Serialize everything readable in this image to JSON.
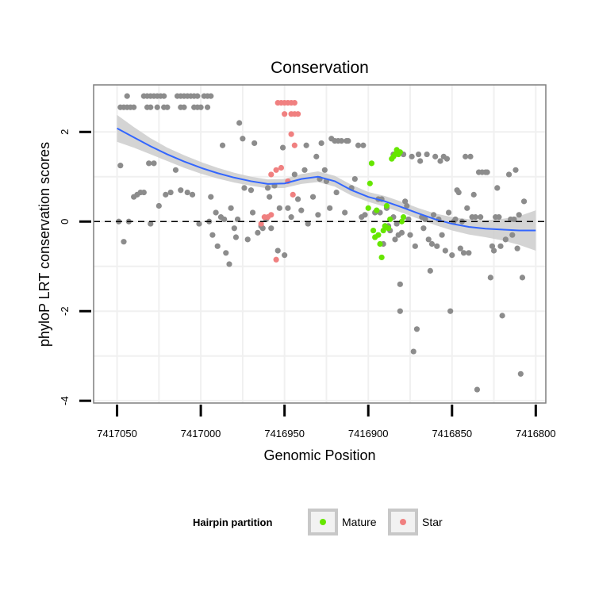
{
  "chart_data": {
    "type": "scatter",
    "title": "Conservation",
    "xlabel": "Genomic Position",
    "ylabel": "phyloP LRT conservation scores",
    "x_reversed": true,
    "xlim": [
      7417064,
      7416794
    ],
    "ylim": [
      -4.05,
      3.05
    ],
    "x_ticks": [
      7417050,
      7417000,
      7416950,
      7416900,
      7416850,
      7416800
    ],
    "x_tick_labels": [
      "7417050",
      "7417000",
      "7416950",
      "7416900",
      "7416850",
      "7416800"
    ],
    "y_ticks": [
      -4,
      -2,
      0,
      2
    ],
    "y_tick_labels": [
      "-4",
      "-2",
      "0",
      "2"
    ],
    "reference_line": {
      "y": 0,
      "style": "dashed"
    },
    "colors": {
      "background": "#ffffff",
      "panel_border": "#7f7f7f",
      "gridline": "#f0f0f0",
      "other_points": "#8c8c8c",
      "mature": "#66e600",
      "star": "#f08080",
      "smooth_line": "#3366ff",
      "ribbon": "#cccccc"
    },
    "legend": {
      "title": "Hairpin partition",
      "position": "bottom",
      "entries": [
        {
          "label": "Mature",
          "color": "#66e600"
        },
        {
          "label": "Star",
          "color": "#f08080"
        }
      ]
    },
    "series": [
      {
        "name": "Other",
        "points": [
          [
            7417048,
            2.55
          ],
          [
            7417046,
            2.55
          ],
          [
            7417044,
            2.55
          ],
          [
            7417042,
            2.55
          ],
          [
            7417040,
            2.55
          ],
          [
            7417044,
            2.8
          ],
          [
            7417034,
            2.8
          ],
          [
            7417032,
            2.8
          ],
          [
            7417030,
            2.8
          ],
          [
            7417028,
            2.8
          ],
          [
            7417026,
            2.8
          ],
          [
            7417024,
            2.8
          ],
          [
            7417022,
            2.8
          ],
          [
            7417032,
            2.55
          ],
          [
            7417030,
            2.55
          ],
          [
            7417026,
            2.55
          ],
          [
            7417022,
            2.55
          ],
          [
            7417020,
            2.55
          ],
          [
            7417014,
            2.8
          ],
          [
            7417012,
            2.8
          ],
          [
            7417010,
            2.8
          ],
          [
            7417008,
            2.8
          ],
          [
            7417006,
            2.8
          ],
          [
            7417004,
            2.8
          ],
          [
            7417002,
            2.8
          ],
          [
            7416998,
            2.8
          ],
          [
            7416996,
            2.8
          ],
          [
            7416994,
            2.8
          ],
          [
            7417012,
            2.55
          ],
          [
            7417010,
            2.55
          ],
          [
            7417004,
            2.55
          ],
          [
            7417002,
            2.55
          ],
          [
            7417000,
            2.55
          ],
          [
            7416996,
            2.55
          ],
          [
            7417048,
            1.25
          ],
          [
            7417046,
            -0.45
          ],
          [
            7417049,
            0
          ],
          [
            7417043,
            0
          ],
          [
            7417040,
            0.55
          ],
          [
            7417038,
            0.6
          ],
          [
            7417036,
            0.65
          ],
          [
            7417034,
            0.65
          ],
          [
            7417031,
            1.3
          ],
          [
            7417028,
            1.3
          ],
          [
            7417030,
            -0.05
          ],
          [
            7417025,
            0.35
          ],
          [
            7417021,
            0.6
          ],
          [
            7417018,
            0.65
          ],
          [
            7417015,
            1.15
          ],
          [
            7417012,
            0.7
          ],
          [
            7417008,
            0.65
          ],
          [
            7417005,
            0.6
          ],
          [
            7417001,
            -0.05
          ],
          [
            7416995,
            0
          ],
          [
            7416994,
            0.55
          ],
          [
            7416993,
            -0.3
          ],
          [
            7416991,
            0.2
          ],
          [
            7416990,
            -0.55
          ],
          [
            7416988,
            0.1
          ],
          [
            7416987,
            1.7
          ],
          [
            7416986,
            0.05
          ],
          [
            7416985,
            -0.7
          ],
          [
            7416983,
            -0.95
          ],
          [
            7416982,
            0.3
          ],
          [
            7416980,
            -0.15
          ],
          [
            7416979,
            -0.35
          ],
          [
            7416978,
            0.05
          ],
          [
            7416977,
            2.2
          ],
          [
            7416975,
            1.85
          ],
          [
            7416974,
            0.75
          ],
          [
            7416972,
            -0.4
          ],
          [
            7416970,
            0.7
          ],
          [
            7416969,
            0.2
          ],
          [
            7416968,
            1.75
          ],
          [
            7416966,
            -0.25
          ],
          [
            7416964,
            -0.1
          ],
          [
            7416963,
            -0.15
          ],
          [
            7416961,
            0.05
          ],
          [
            7416960,
            0.75
          ],
          [
            7416959,
            0.55
          ],
          [
            7416958,
            -0.15
          ],
          [
            7416956,
            0.8
          ],
          [
            7416954,
            -0.65
          ],
          [
            7416953,
            0.3
          ],
          [
            7416951,
            1.65
          ],
          [
            7416950,
            -0.75
          ],
          [
            7416948,
            0.3
          ],
          [
            7416946,
            0.1
          ],
          [
            7416944,
            1.05
          ],
          [
            7416942,
            0.5
          ],
          [
            7416940,
            0.25
          ],
          [
            7416938,
            1.15
          ],
          [
            7416937,
            1.7
          ],
          [
            7416936,
            -0.05
          ],
          [
            7416933,
            0.55
          ],
          [
            7416931,
            1.45
          ],
          [
            7416930,
            0.15
          ],
          [
            7416929,
            0.95
          ],
          [
            7416928,
            1.75
          ],
          [
            7416926,
            1.15
          ],
          [
            7416925,
            0.9
          ],
          [
            7416923,
            0.3
          ],
          [
            7416922,
            1.85
          ],
          [
            7416920,
            1.8
          ],
          [
            7416919,
            0.65
          ],
          [
            7416918,
            1.8
          ],
          [
            7416916,
            1.8
          ],
          [
            7416914,
            0.2
          ],
          [
            7416913,
            1.8
          ],
          [
            7416912,
            1.8
          ],
          [
            7416910,
            0.75
          ],
          [
            7416908,
            0.95
          ],
          [
            7416906,
            1.7
          ],
          [
            7416904,
            0.1
          ],
          [
            7416903,
            1.7
          ],
          [
            7416902,
            0.15
          ],
          [
            7416896,
            0.2
          ],
          [
            7416894,
            0.5
          ],
          [
            7416893,
            0.2
          ],
          [
            7416892,
            0.5
          ],
          [
            7416891,
            -0.5
          ],
          [
            7416890,
            -0.1
          ],
          [
            7416889,
            0.3
          ],
          [
            7416888,
            -0.1
          ],
          [
            7416887,
            -0.2
          ],
          [
            7416885,
            1.5
          ],
          [
            7416885,
            0.1
          ],
          [
            7416884,
            -0.4
          ],
          [
            7416883,
            -0.05
          ],
          [
            7416882,
            -0.3
          ],
          [
            7416881,
            -1.4
          ],
          [
            7416881,
            -2.0
          ],
          [
            7416880,
            -0.25
          ],
          [
            7416879,
            1.5
          ],
          [
            7416878,
            0.45
          ],
          [
            7416877,
            0.35
          ],
          [
            7416876,
            0.05
          ],
          [
            7416875,
            -0.3
          ],
          [
            7416874,
            1.45
          ],
          [
            7416873,
            -2.9
          ],
          [
            7416872,
            -0.55
          ],
          [
            7416871,
            -2.4
          ],
          [
            7416870,
            1.5
          ],
          [
            7416869,
            1.35
          ],
          [
            7416868,
            0.1
          ],
          [
            7416867,
            -0.15
          ],
          [
            7416866,
            0.05
          ],
          [
            7416865,
            1.5
          ],
          [
            7416864,
            -0.4
          ],
          [
            7416863,
            -1.1
          ],
          [
            7416862,
            -0.5
          ],
          [
            7416861,
            0.15
          ],
          [
            7416860,
            1.45
          ],
          [
            7416859,
            -0.55
          ],
          [
            7416858,
            0.05
          ],
          [
            7416857,
            1.35
          ],
          [
            7416856,
            -0.3
          ],
          [
            7416855,
            1.45
          ],
          [
            7416854,
            -0.65
          ],
          [
            7416853,
            1.4
          ],
          [
            7416852,
            0.2
          ],
          [
            7416851,
            -2.0
          ],
          [
            7416850,
            -0.75
          ],
          [
            7416849,
            0
          ],
          [
            7416848,
            0.05
          ],
          [
            7416847,
            0.7
          ],
          [
            7416846,
            0.65
          ],
          [
            7416845,
            -0.6
          ],
          [
            7416844,
            0
          ],
          [
            7416843,
            -0.7
          ],
          [
            7416842,
            1.45
          ],
          [
            7416841,
            0.3
          ],
          [
            7416840,
            -0.7
          ],
          [
            7416839,
            1.45
          ],
          [
            7416838,
            0.1
          ],
          [
            7416837,
            0.6
          ],
          [
            7416836,
            0.1
          ],
          [
            7416835,
            -3.75
          ],
          [
            7416834,
            1.1
          ],
          [
            7416833,
            0.1
          ],
          [
            7416832,
            1.1
          ],
          [
            7416830,
            1.1
          ],
          [
            7416829,
            1.1
          ],
          [
            7416827,
            -1.25
          ],
          [
            7416826,
            -0.55
          ],
          [
            7416825,
            -0.65
          ],
          [
            7416824,
            0.1
          ],
          [
            7416823,
            0.75
          ],
          [
            7416822,
            0.1
          ],
          [
            7416821,
            -0.55
          ],
          [
            7416820,
            -2.1
          ],
          [
            7416818,
            -0.4
          ],
          [
            7416816,
            1.05
          ],
          [
            7416815,
            0.05
          ],
          [
            7416814,
            -0.3
          ],
          [
            7416813,
            0.05
          ],
          [
            7416812,
            1.15
          ],
          [
            7416811,
            -0.6
          ],
          [
            7416810,
            0.15
          ],
          [
            7416809,
            -3.4
          ],
          [
            7416808,
            -1.25
          ],
          [
            7416807,
            0.45
          ]
        ]
      },
      {
        "name": "Mature",
        "points": [
          [
            7416900,
            0.3
          ],
          [
            7416899,
            0.85
          ],
          [
            7416898,
            1.3
          ],
          [
            7416897,
            -0.2
          ],
          [
            7416896,
            -0.35
          ],
          [
            7416895,
            0.25
          ],
          [
            7416894,
            -0.3
          ],
          [
            7416893,
            -0.5
          ],
          [
            7416892,
            -0.8
          ],
          [
            7416891,
            -0.2
          ],
          [
            7416890,
            -0.1
          ],
          [
            7416889,
            0.35
          ],
          [
            7416888,
            -0.15
          ],
          [
            7416887,
            0.05
          ],
          [
            7416886,
            1.4
          ],
          [
            7416885,
            1.45
          ],
          [
            7416884,
            1.5
          ],
          [
            7416883,
            1.6
          ],
          [
            7416882,
            1.5
          ],
          [
            7416881,
            1.55
          ],
          [
            7416880,
            0
          ],
          [
            7416879,
            0.1
          ]
        ]
      },
      {
        "name": "Star",
        "points": [
          [
            7416954,
            2.65
          ],
          [
            7416952,
            2.65
          ],
          [
            7416950,
            2.65
          ],
          [
            7416948,
            2.65
          ],
          [
            7416946,
            2.65
          ],
          [
            7416944,
            2.65
          ],
          [
            7416950,
            2.4
          ],
          [
            7416946,
            2.4
          ],
          [
            7416944,
            2.4
          ],
          [
            7416942,
            2.4
          ],
          [
            7416958,
            1.05
          ],
          [
            7416955,
            1.15
          ],
          [
            7416952,
            1.2
          ],
          [
            7416948,
            0.9
          ],
          [
            7416945,
            0.6
          ],
          [
            7416962,
            0.1
          ],
          [
            7416960,
            0.1
          ],
          [
            7416964,
            -0.05
          ],
          [
            7416958,
            0.15
          ],
          [
            7416955,
            -0.85
          ],
          [
            7416946,
            1.95
          ],
          [
            7416944,
            1.7
          ]
        ]
      }
    ],
    "smooth_fit": {
      "x": [
        7417050,
        7417040,
        7417030,
        7417020,
        7417010,
        7417000,
        7416990,
        7416980,
        7416970,
        7416960,
        7416950,
        7416940,
        7416930,
        7416920,
        7416910,
        7416900,
        7416890,
        7416880,
        7416870,
        7416860,
        7416850,
        7416840,
        7416830,
        7416820,
        7416810,
        7416800
      ],
      "y": [
        2.08,
        1.88,
        1.68,
        1.5,
        1.34,
        1.2,
        1.08,
        0.98,
        0.9,
        0.84,
        0.85,
        0.95,
        1.0,
        0.9,
        0.7,
        0.55,
        0.45,
        0.32,
        0.18,
        0.05,
        -0.05,
        -0.12,
        -0.16,
        -0.18,
        -0.2,
        -0.2
      ],
      "lower": [
        1.78,
        1.65,
        1.5,
        1.35,
        1.2,
        1.07,
        0.96,
        0.87,
        0.8,
        0.74,
        0.75,
        0.84,
        0.88,
        0.78,
        0.58,
        0.44,
        0.33,
        0.2,
        0.06,
        -0.08,
        -0.2,
        -0.29,
        -0.35,
        -0.42,
        -0.52,
        -0.65
      ],
      "upper": [
        2.38,
        2.11,
        1.86,
        1.65,
        1.48,
        1.33,
        1.2,
        1.09,
        1.0,
        0.94,
        0.95,
        1.06,
        1.12,
        1.02,
        0.82,
        0.66,
        0.57,
        0.44,
        0.3,
        0.18,
        0.1,
        0.05,
        0.03,
        0.06,
        0.12,
        0.25
      ]
    }
  }
}
